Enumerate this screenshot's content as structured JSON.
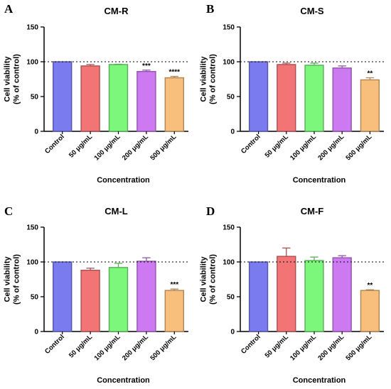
{
  "colors": {
    "Control": "#7b7bf0",
    "50 μg/mL": "#f27474",
    "100 μg/mL": "#7cf77c",
    "200 μg/mL": "#cd79f2",
    "500 μg/mL": "#f7be7c"
  },
  "chart_data": [
    {
      "type": "bar",
      "panel": "A",
      "title": "CM-R",
      "xlabel": "Concentration",
      "ylabel": "Cell viability\n(% of control)",
      "ylim": [
        0,
        150
      ],
      "yticks": [
        0,
        50,
        100,
        150
      ],
      "reference_line": 100,
      "categories": [
        "Control",
        "50 μg/mL",
        "100 μg/mL",
        "200 μg/mL",
        "500 μg/mL"
      ],
      "values": [
        100,
        94,
        96,
        86,
        77
      ],
      "errors": [
        0,
        2,
        0.5,
        2,
        2
      ],
      "significance": [
        "",
        "",
        "",
        "***",
        "****"
      ]
    },
    {
      "type": "bar",
      "panel": "B",
      "title": "CM-S",
      "xlabel": "Concentration",
      "ylabel": "Cell viability\n(% of control)",
      "ylim": [
        0,
        150
      ],
      "yticks": [
        0,
        50,
        100,
        150
      ],
      "reference_line": 100,
      "categories": [
        "Control",
        "50 μg/mL",
        "100 μg/mL",
        "200 μg/mL",
        "500 μg/mL"
      ],
      "values": [
        100,
        96,
        95,
        91,
        74
      ],
      "errors": [
        0,
        2,
        3,
        3,
        3
      ],
      "significance": [
        "",
        "",
        "",
        "",
        "**"
      ]
    },
    {
      "type": "bar",
      "panel": "C",
      "title": "CM-L",
      "xlabel": "Concentration",
      "ylabel": "Cell viability\n(% of control)",
      "ylim": [
        0,
        150
      ],
      "yticks": [
        0,
        50,
        100,
        150
      ],
      "reference_line": 100,
      "categories": [
        "Control",
        "50 μg/mL",
        "100 μg/mL",
        "200 μg/mL",
        "500 μg/mL"
      ],
      "values": [
        100,
        88,
        92,
        101,
        59
      ],
      "errors": [
        0,
        3,
        6,
        5,
        2
      ],
      "significance": [
        "",
        "",
        "",
        "",
        "***"
      ]
    },
    {
      "type": "bar",
      "panel": "D",
      "title": "CM-F",
      "xlabel": "Concentration",
      "ylabel": "Cell viability\n(% of control)",
      "ylim": [
        0,
        150
      ],
      "yticks": [
        0,
        50,
        100,
        150
      ],
      "reference_line": 100,
      "categories": [
        "Control",
        "50 μg/mL",
        "100 μg/mL",
        "200 μg/mL",
        "500 μg/mL"
      ],
      "values": [
        100,
        108,
        102,
        106,
        59
      ],
      "errors": [
        0,
        12,
        5,
        3,
        1
      ],
      "significance": [
        "",
        "",
        "",
        "",
        "**"
      ]
    }
  ]
}
